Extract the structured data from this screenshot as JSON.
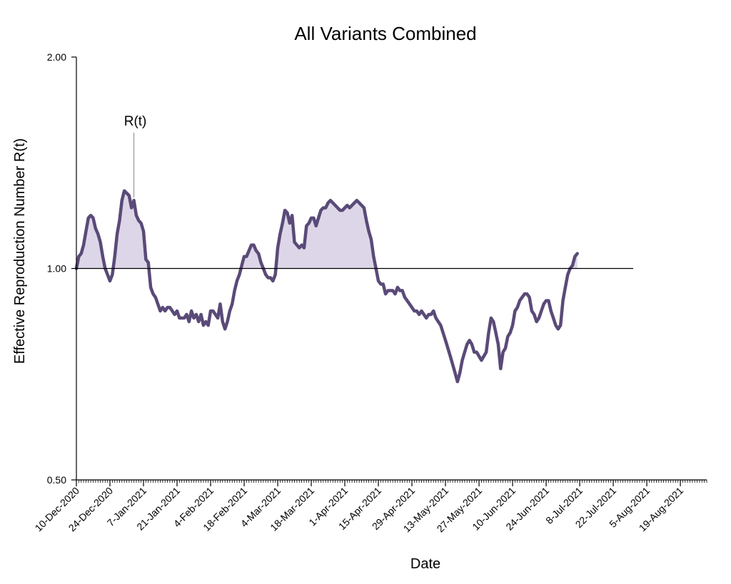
{
  "chart_data": {
    "type": "line",
    "title": "All Variants Combined",
    "xlabel": "Date",
    "ylabel": "Effective Reproduction Number R(t)",
    "y_scale": "log",
    "ylim": [
      0.5,
      2.0
    ],
    "y_ticks": [
      {
        "value": 0.5,
        "label": "0.50"
      },
      {
        "value": 1.0,
        "label": "1.00"
      },
      {
        "value": 2.0,
        "label": "2.00"
      }
    ],
    "xlim": [
      "2020-12-10",
      "2021-08-30"
    ],
    "x_ticks": [
      {
        "date": "2020-12-10",
        "label": "10-Dec-2020"
      },
      {
        "date": "2020-12-24",
        "label": "24-Dec-2020"
      },
      {
        "date": "2021-01-07",
        "label": "7-Jan-2021"
      },
      {
        "date": "2021-01-21",
        "label": "21-Jan-2021"
      },
      {
        "date": "2021-02-04",
        "label": "4-Feb-2021"
      },
      {
        "date": "2021-02-18",
        "label": "18-Feb-2021"
      },
      {
        "date": "2021-03-04",
        "label": "4-Mar-2021"
      },
      {
        "date": "2021-03-18",
        "label": "18-Mar-2021"
      },
      {
        "date": "2021-04-01",
        "label": "1-Apr-2021"
      },
      {
        "date": "2021-04-15",
        "label": "15-Apr-2021"
      },
      {
        "date": "2021-04-29",
        "label": "29-Apr-2021"
      },
      {
        "date": "2021-05-13",
        "label": "13-May-2021"
      },
      {
        "date": "2021-05-27",
        "label": "27-May-2021"
      },
      {
        "date": "2021-06-10",
        "label": "10-Jun-2021"
      },
      {
        "date": "2021-06-24",
        "label": "24-Jun-2021"
      },
      {
        "date": "2021-07-08",
        "label": "8-Jul-2021"
      },
      {
        "date": "2021-07-22",
        "label": "22-Jul-2021"
      },
      {
        "date": "2021-08-05",
        "label": "5-Aug-2021"
      },
      {
        "date": "2021-08-19",
        "label": "19-Aug-2021"
      }
    ],
    "reference_line": {
      "y": 1.0
    },
    "annotation": {
      "text": "R(t)",
      "date": "2021-01-03"
    },
    "series": [
      {
        "name": "R(t)",
        "color": "#5a4a78",
        "fill_color": "#ddd6e8",
        "points": [
          [
            "2020-12-10",
            1.0
          ],
          [
            "2020-12-11",
            1.04
          ],
          [
            "2020-12-12",
            1.05
          ],
          [
            "2020-12-13",
            1.08
          ],
          [
            "2020-12-14",
            1.13
          ],
          [
            "2020-12-15",
            1.18
          ],
          [
            "2020-12-16",
            1.19
          ],
          [
            "2020-12-17",
            1.18
          ],
          [
            "2020-12-18",
            1.14
          ],
          [
            "2020-12-19",
            1.12
          ],
          [
            "2020-12-20",
            1.09
          ],
          [
            "2020-12-21",
            1.04
          ],
          [
            "2020-12-22",
            1.0
          ],
          [
            "2020-12-23",
            0.98
          ],
          [
            "2020-12-24",
            0.96
          ],
          [
            "2020-12-25",
            0.98
          ],
          [
            "2020-12-26",
            1.04
          ],
          [
            "2020-12-27",
            1.12
          ],
          [
            "2020-12-28",
            1.17
          ],
          [
            "2020-12-29",
            1.25
          ],
          [
            "2020-12-30",
            1.29
          ],
          [
            "2020-12-31",
            1.28
          ],
          [
            "2021-01-01",
            1.27
          ],
          [
            "2021-01-02",
            1.22
          ],
          [
            "2021-01-03",
            1.25
          ],
          [
            "2021-01-04",
            1.19
          ],
          [
            "2021-01-05",
            1.17
          ],
          [
            "2021-01-06",
            1.16
          ],
          [
            "2021-01-07",
            1.13
          ],
          [
            "2021-01-08",
            1.03
          ],
          [
            "2021-01-09",
            1.02
          ],
          [
            "2021-01-10",
            0.94
          ],
          [
            "2021-01-11",
            0.92
          ],
          [
            "2021-01-12",
            0.91
          ],
          [
            "2021-01-13",
            0.89
          ],
          [
            "2021-01-14",
            0.87
          ],
          [
            "2021-01-15",
            0.88
          ],
          [
            "2021-01-16",
            0.87
          ],
          [
            "2021-01-17",
            0.88
          ],
          [
            "2021-01-18",
            0.88
          ],
          [
            "2021-01-19",
            0.87
          ],
          [
            "2021-01-20",
            0.86
          ],
          [
            "2021-01-21",
            0.87
          ],
          [
            "2021-01-22",
            0.85
          ],
          [
            "2021-01-23",
            0.85
          ],
          [
            "2021-01-24",
            0.85
          ],
          [
            "2021-01-25",
            0.86
          ],
          [
            "2021-01-26",
            0.84
          ],
          [
            "2021-01-27",
            0.87
          ],
          [
            "2021-01-28",
            0.85
          ],
          [
            "2021-01-29",
            0.86
          ],
          [
            "2021-01-30",
            0.84
          ],
          [
            "2021-01-31",
            0.86
          ],
          [
            "2021-02-01",
            0.83
          ],
          [
            "2021-02-02",
            0.84
          ],
          [
            "2021-02-03",
            0.83
          ],
          [
            "2021-02-04",
            0.87
          ],
          [
            "2021-02-05",
            0.87
          ],
          [
            "2021-02-06",
            0.86
          ],
          [
            "2021-02-07",
            0.85
          ],
          [
            "2021-02-08",
            0.89
          ],
          [
            "2021-02-09",
            0.84
          ],
          [
            "2021-02-10",
            0.82
          ],
          [
            "2021-02-11",
            0.84
          ],
          [
            "2021-02-12",
            0.87
          ],
          [
            "2021-02-13",
            0.89
          ],
          [
            "2021-02-14",
            0.93
          ],
          [
            "2021-02-15",
            0.96
          ],
          [
            "2021-02-16",
            0.98
          ],
          [
            "2021-02-17",
            1.01
          ],
          [
            "2021-02-18",
            1.04
          ],
          [
            "2021-02-19",
            1.04
          ],
          [
            "2021-02-20",
            1.06
          ],
          [
            "2021-02-21",
            1.08
          ],
          [
            "2021-02-22",
            1.08
          ],
          [
            "2021-02-23",
            1.06
          ],
          [
            "2021-02-24",
            1.05
          ],
          [
            "2021-02-25",
            1.02
          ],
          [
            "2021-02-26",
            1.0
          ],
          [
            "2021-02-27",
            0.98
          ],
          [
            "2021-02-28",
            0.97
          ],
          [
            "2021-03-01",
            0.97
          ],
          [
            "2021-03-02",
            0.96
          ],
          [
            "2021-03-03",
            0.98
          ],
          [
            "2021-03-04",
            1.07
          ],
          [
            "2021-03-05",
            1.12
          ],
          [
            "2021-03-06",
            1.16
          ],
          [
            "2021-03-07",
            1.21
          ],
          [
            "2021-03-08",
            1.2
          ],
          [
            "2021-03-09",
            1.16
          ],
          [
            "2021-03-10",
            1.19
          ],
          [
            "2021-03-11",
            1.09
          ],
          [
            "2021-03-12",
            1.08
          ],
          [
            "2021-03-13",
            1.07
          ],
          [
            "2021-03-14",
            1.08
          ],
          [
            "2021-03-15",
            1.07
          ],
          [
            "2021-03-16",
            1.15
          ],
          [
            "2021-03-17",
            1.16
          ],
          [
            "2021-03-18",
            1.18
          ],
          [
            "2021-03-19",
            1.18
          ],
          [
            "2021-03-20",
            1.15
          ],
          [
            "2021-03-21",
            1.18
          ],
          [
            "2021-03-22",
            1.21
          ],
          [
            "2021-03-23",
            1.22
          ],
          [
            "2021-03-24",
            1.22
          ],
          [
            "2021-03-25",
            1.24
          ],
          [
            "2021-03-26",
            1.25
          ],
          [
            "2021-03-27",
            1.24
          ],
          [
            "2021-03-28",
            1.23
          ],
          [
            "2021-03-29",
            1.22
          ],
          [
            "2021-03-30",
            1.21
          ],
          [
            "2021-03-31",
            1.21
          ],
          [
            "2021-04-01",
            1.22
          ],
          [
            "2021-04-02",
            1.23
          ],
          [
            "2021-04-03",
            1.22
          ],
          [
            "2021-04-04",
            1.23
          ],
          [
            "2021-04-05",
            1.24
          ],
          [
            "2021-04-06",
            1.25
          ],
          [
            "2021-04-07",
            1.24
          ],
          [
            "2021-04-08",
            1.23
          ],
          [
            "2021-04-09",
            1.22
          ],
          [
            "2021-04-10",
            1.17
          ],
          [
            "2021-04-11",
            1.13
          ],
          [
            "2021-04-12",
            1.1
          ],
          [
            "2021-04-13",
            1.04
          ],
          [
            "2021-04-14",
            1.0
          ],
          [
            "2021-04-15",
            0.96
          ],
          [
            "2021-04-16",
            0.95
          ],
          [
            "2021-04-17",
            0.95
          ],
          [
            "2021-04-18",
            0.92
          ],
          [
            "2021-04-19",
            0.93
          ],
          [
            "2021-04-20",
            0.93
          ],
          [
            "2021-04-21",
            0.93
          ],
          [
            "2021-04-22",
            0.92
          ],
          [
            "2021-04-23",
            0.94
          ],
          [
            "2021-04-24",
            0.93
          ],
          [
            "2021-04-25",
            0.93
          ],
          [
            "2021-04-26",
            0.91
          ],
          [
            "2021-04-27",
            0.9
          ],
          [
            "2021-04-28",
            0.89
          ],
          [
            "2021-04-29",
            0.88
          ],
          [
            "2021-04-30",
            0.87
          ],
          [
            "2021-05-01",
            0.87
          ],
          [
            "2021-05-02",
            0.86
          ],
          [
            "2021-05-03",
            0.87
          ],
          [
            "2021-05-04",
            0.86
          ],
          [
            "2021-05-05",
            0.85
          ],
          [
            "2021-05-06",
            0.86
          ],
          [
            "2021-05-07",
            0.86
          ],
          [
            "2021-05-08",
            0.87
          ],
          [
            "2021-05-09",
            0.85
          ],
          [
            "2021-05-10",
            0.84
          ],
          [
            "2021-05-11",
            0.83
          ],
          [
            "2021-05-12",
            0.81
          ],
          [
            "2021-05-13",
            0.79
          ],
          [
            "2021-05-14",
            0.77
          ],
          [
            "2021-05-15",
            0.75
          ],
          [
            "2021-05-16",
            0.73
          ],
          [
            "2021-05-17",
            0.71
          ],
          [
            "2021-05-18",
            0.69
          ],
          [
            "2021-05-19",
            0.71
          ],
          [
            "2021-05-20",
            0.74
          ],
          [
            "2021-05-21",
            0.76
          ],
          [
            "2021-05-22",
            0.78
          ],
          [
            "2021-05-23",
            0.79
          ],
          [
            "2021-05-24",
            0.78
          ],
          [
            "2021-05-25",
            0.76
          ],
          [
            "2021-05-26",
            0.76
          ],
          [
            "2021-05-27",
            0.75
          ],
          [
            "2021-05-28",
            0.74
          ],
          [
            "2021-05-29",
            0.75
          ],
          [
            "2021-05-30",
            0.76
          ],
          [
            "2021-05-31",
            0.81
          ],
          [
            "2021-06-01",
            0.85
          ],
          [
            "2021-06-02",
            0.84
          ],
          [
            "2021-06-03",
            0.81
          ],
          [
            "2021-06-04",
            0.78
          ],
          [
            "2021-06-05",
            0.72
          ],
          [
            "2021-06-06",
            0.76
          ],
          [
            "2021-06-07",
            0.77
          ],
          [
            "2021-06-08",
            0.8
          ],
          [
            "2021-06-09",
            0.81
          ],
          [
            "2021-06-10",
            0.83
          ],
          [
            "2021-06-11",
            0.87
          ],
          [
            "2021-06-12",
            0.88
          ],
          [
            "2021-06-13",
            0.9
          ],
          [
            "2021-06-14",
            0.91
          ],
          [
            "2021-06-15",
            0.92
          ],
          [
            "2021-06-16",
            0.92
          ],
          [
            "2021-06-17",
            0.91
          ],
          [
            "2021-06-18",
            0.87
          ],
          [
            "2021-06-19",
            0.86
          ],
          [
            "2021-06-20",
            0.84
          ],
          [
            "2021-06-21",
            0.85
          ],
          [
            "2021-06-22",
            0.87
          ],
          [
            "2021-06-23",
            0.89
          ],
          [
            "2021-06-24",
            0.9
          ],
          [
            "2021-06-25",
            0.9
          ],
          [
            "2021-06-26",
            0.87
          ],
          [
            "2021-06-27",
            0.85
          ],
          [
            "2021-06-28",
            0.83
          ],
          [
            "2021-06-29",
            0.82
          ],
          [
            "2021-06-30",
            0.83
          ],
          [
            "2021-07-01",
            0.9
          ],
          [
            "2021-07-02",
            0.94
          ],
          [
            "2021-07-03",
            0.98
          ],
          [
            "2021-07-04",
            1.0
          ],
          [
            "2021-07-05",
            1.01
          ],
          [
            "2021-07-06",
            1.04
          ],
          [
            "2021-07-07",
            1.05
          ]
        ]
      }
    ]
  }
}
